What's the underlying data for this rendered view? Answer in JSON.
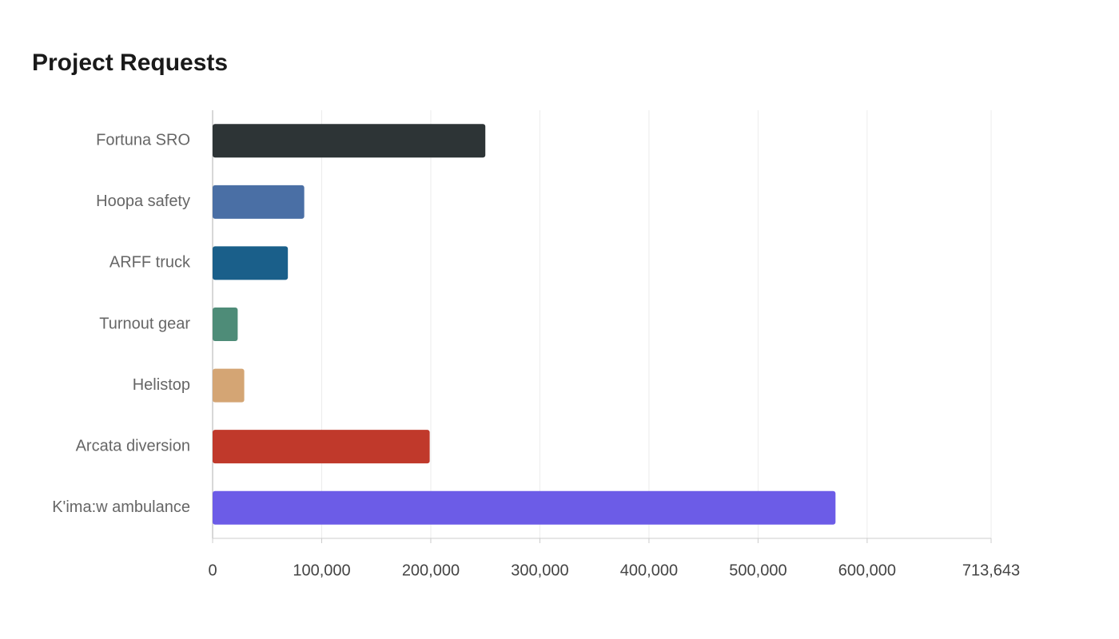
{
  "chart_data": {
    "type": "bar",
    "orientation": "horizontal",
    "title": "Project Requests",
    "categories": [
      "Fortuna SRO",
      "Hoopa safety",
      "ARFF truck",
      "Turnout gear",
      "Helistop",
      "Arcata diversion",
      "K'ima:w ambulance"
    ],
    "values": [
      250000,
      84000,
      69000,
      23000,
      29000,
      199000,
      571000
    ],
    "colors": [
      "#2d3436",
      "#4a6fa5",
      "#1a5f8a",
      "#4e8c78",
      "#d4a574",
      "#c0392b",
      "#6c5ce7"
    ],
    "xlim": [
      0,
      713643
    ],
    "xticks": [
      0,
      {
        "value": 100000,
        "label": "100,000"
      },
      {
        "value": 200000,
        "label": "200,000"
      },
      {
        "value": 300000,
        "label": "300,000"
      },
      {
        "value": 400000,
        "label": "400,000"
      },
      {
        "value": 500000,
        "label": "500,000"
      },
      {
        "value": 600000,
        "label": "600,000"
      },
      {
        "value": 713643,
        "label": "713,643"
      }
    ],
    "grid": true
  }
}
